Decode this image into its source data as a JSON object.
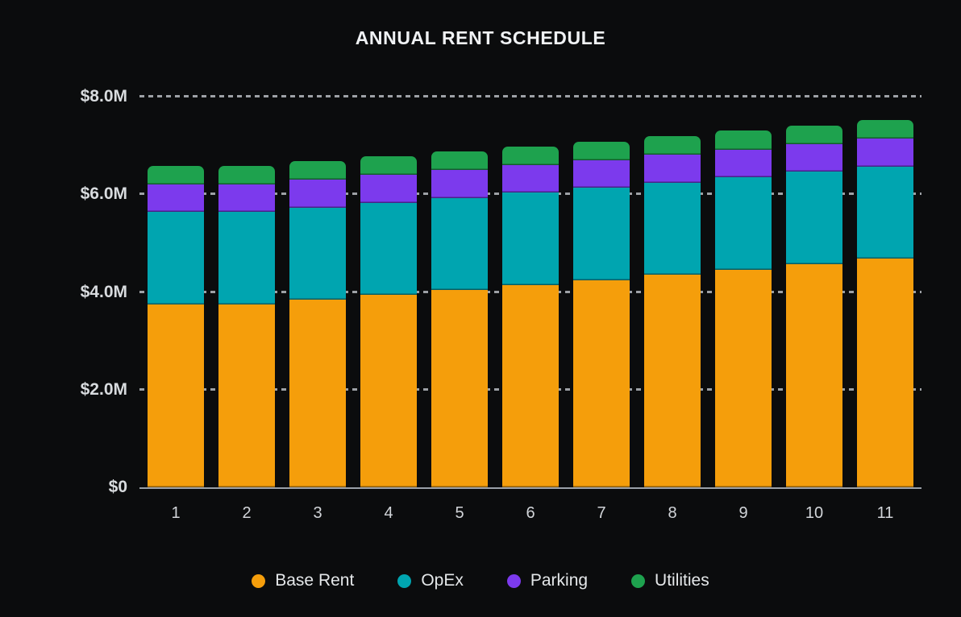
{
  "title": "ANNUAL RENT SCHEDULE",
  "colors": {
    "background": "#0b0c0d",
    "grid": "#c2c6cc",
    "axis": "#9aa0a8",
    "title_text": "#f0f2f4",
    "tick_text": "#d8dbde",
    "legend_text": "#e5e8ea"
  },
  "chart_data": {
    "type": "bar",
    "stacked": true,
    "title": "ANNUAL RENT SCHEDULE",
    "xlabel": "",
    "ylabel": "",
    "unit": "USD millions",
    "ylim": [
      0,
      8
    ],
    "grid": "dashed horizontal lines every 2.0M, drawn behind bars",
    "legend_position": "bottom",
    "categories": [
      "1",
      "2",
      "3",
      "4",
      "5",
      "6",
      "7",
      "8",
      "9",
      "10",
      "11"
    ],
    "y_ticks": [
      {
        "label": "$8.0M",
        "value": 8
      },
      {
        "label": "$6.0M",
        "value": 6
      },
      {
        "label": "$4.0M",
        "value": 4
      },
      {
        "label": "$2.0M",
        "value": 2
      },
      {
        "label": "$0",
        "value": 0
      }
    ],
    "series": [
      {
        "name": "Base Rent",
        "color": "#f59e0b",
        "values": [
          3.75,
          3.75,
          3.84,
          3.94,
          4.04,
          4.14,
          4.24,
          4.35,
          4.46,
          4.57,
          4.68
        ]
      },
      {
        "name": "OpEx",
        "color": "#00a5b0",
        "values": [
          1.89,
          1.89,
          1.89,
          1.89,
          1.89,
          1.89,
          1.89,
          1.89,
          1.89,
          1.89,
          1.89
        ]
      },
      {
        "name": "Parking",
        "color": "#7c3aed",
        "values": [
          0.57,
          0.57,
          0.57,
          0.57,
          0.57,
          0.57,
          0.57,
          0.57,
          0.57,
          0.57,
          0.57
        ]
      },
      {
        "name": "Utilities",
        "color": "#1ea24e",
        "values": [
          0.38,
          0.38,
          0.38,
          0.38,
          0.38,
          0.38,
          0.38,
          0.38,
          0.38,
          0.38,
          0.38
        ]
      }
    ],
    "totals": [
      6.59,
      6.59,
      6.68,
      6.78,
      6.88,
      6.98,
      7.08,
      7.19,
      7.3,
      7.41,
      7.52
    ]
  },
  "legend": {
    "items": [
      {
        "label": "Base Rent",
        "color": "#f59e0b"
      },
      {
        "label": "OpEx",
        "color": "#00a5b0"
      },
      {
        "label": "Parking",
        "color": "#7c3aed"
      },
      {
        "label": "Utilities",
        "color": "#1ea24e"
      }
    ]
  }
}
